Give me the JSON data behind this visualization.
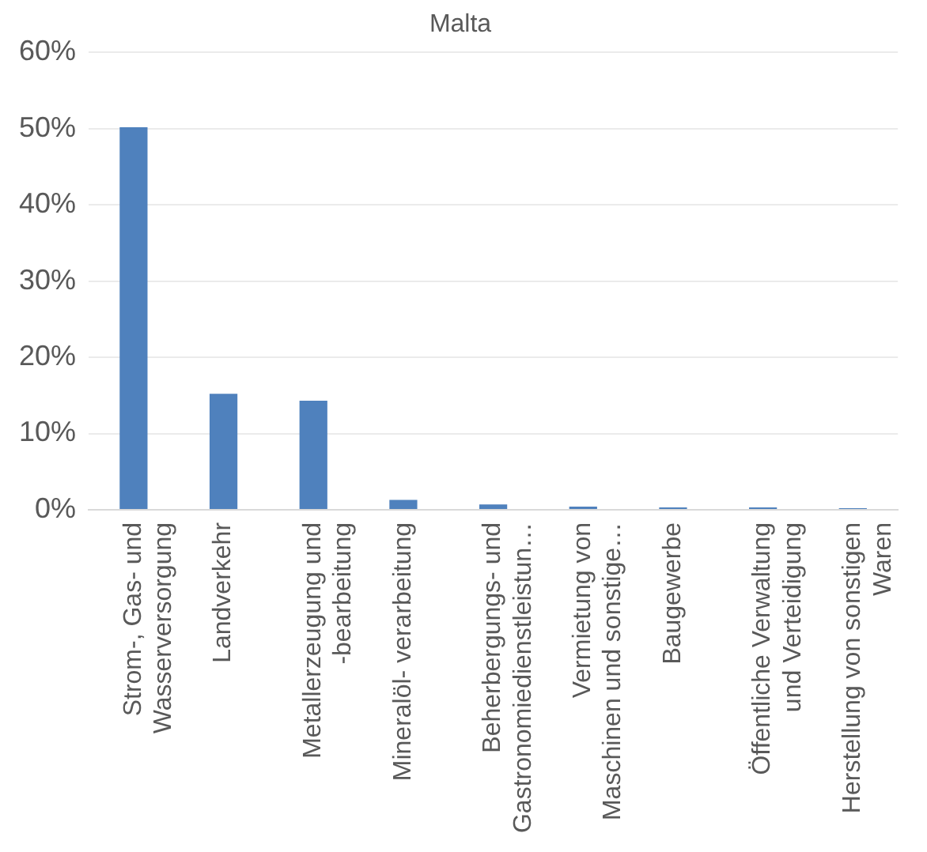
{
  "chart_data": {
    "type": "bar",
    "title": "Malta",
    "categories": [
      "Strom-, Gas- und Wasserversorgung",
      "Landverkehr",
      "Metallerzeugung und -bearbeitung",
      "Mineralöl- verarbeitung",
      "Beherbergungs- und Gastronomiedienstleistun…",
      "Vermietung von Maschinen und sonstige…",
      "Baugewerbe",
      "Öffentliche Verwaltung und Verteidigung",
      "Herstellung von sonstigen Waren"
    ],
    "values": [
      50.2,
      15.2,
      14.3,
      1.3,
      0.7,
      0.4,
      0.3,
      0.3,
      0.2
    ],
    "color": "#4f81bd",
    "ylim": [
      0,
      60
    ],
    "yticks": [
      {
        "value": 0,
        "label": "0%"
      },
      {
        "value": 10,
        "label": "10%"
      },
      {
        "value": 20,
        "label": "20%"
      },
      {
        "value": 30,
        "label": "30%"
      },
      {
        "value": 40,
        "label": "40%"
      },
      {
        "value": 50,
        "label": "50%"
      },
      {
        "value": 60,
        "label": "60%"
      }
    ],
    "grid": "y",
    "legend": false
  }
}
